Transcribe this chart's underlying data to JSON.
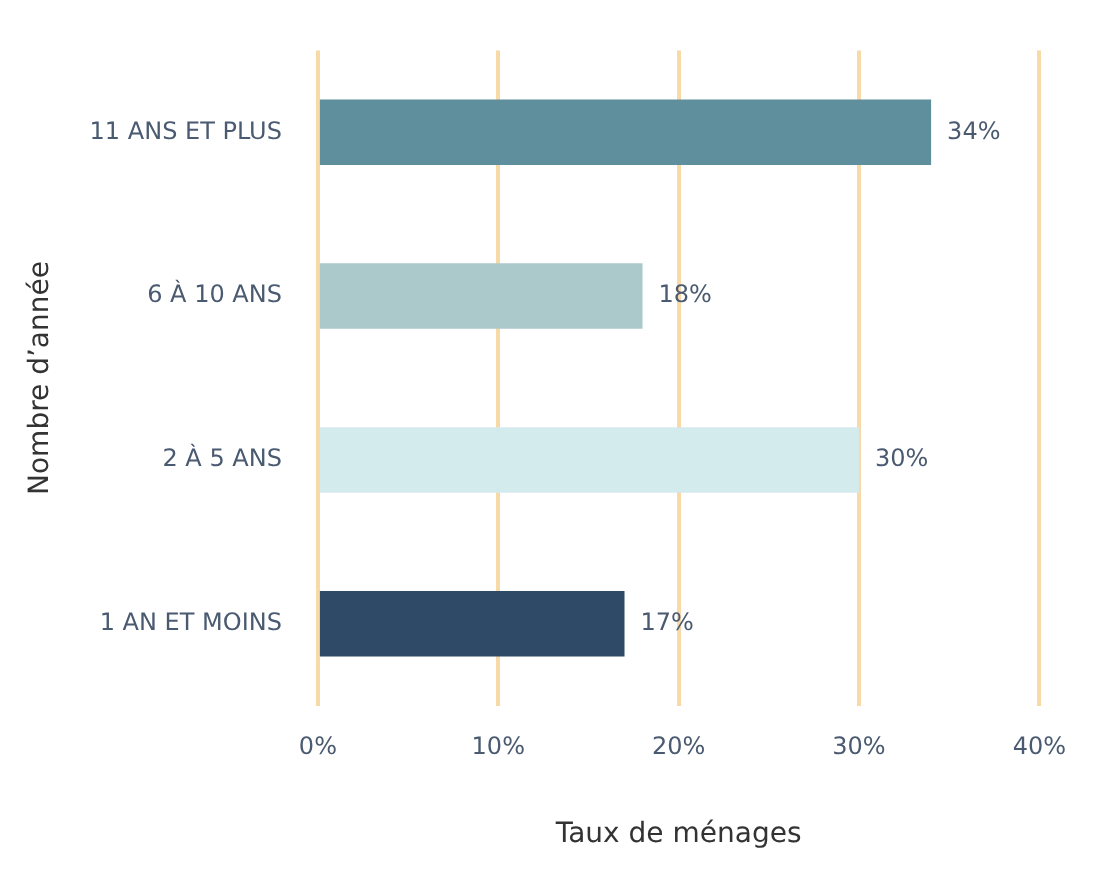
{
  "chart_data": {
    "type": "bar",
    "orientation": "horizontal",
    "xlabel": "Taux de ménages",
    "ylabel": "Nombre d’année",
    "categories": [
      "11 ANS ET PLUS",
      "6 À 10 ANS",
      "2 À 5 ANS",
      "1 AN ET MOINS"
    ],
    "values": [
      34,
      18,
      30,
      17
    ],
    "colors": [
      "#5f8f9c",
      "#abc9cb",
      "#d3ebec",
      "#2f4a66"
    ],
    "value_labels": [
      "34%",
      "18%",
      "30%",
      "17%"
    ],
    "xlim": [
      0,
      40
    ],
    "xticks": [
      {
        "value": 0,
        "label": "0%"
      },
      {
        "value": 10,
        "label": "10%"
      },
      {
        "value": 20,
        "label": "20%"
      },
      {
        "value": 30,
        "label": "30%"
      },
      {
        "value": 40,
        "label": "40%"
      }
    ],
    "grid": "x",
    "legend": false
  }
}
